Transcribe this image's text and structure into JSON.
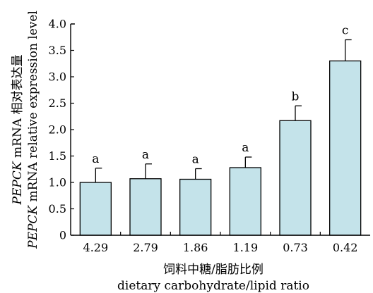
{
  "chart_data": {
    "type": "bar",
    "categories": [
      "4.29",
      "2.79",
      "1.86",
      "1.19",
      "0.73",
      "0.42"
    ],
    "values": [
      1.0,
      1.07,
      1.06,
      1.28,
      2.17,
      3.3
    ],
    "errors": [
      0.27,
      0.28,
      0.2,
      0.2,
      0.28,
      0.4
    ],
    "significance": [
      "a",
      "a",
      "a",
      "a",
      "b",
      "c"
    ],
    "xlabel_cn": "饲料中糖/脂肪比例",
    "xlabel_en": "dietary carbohydrate/lipid ratio",
    "ylabel_cn": {
      "gene": "PEPCK",
      "rest": " mRNA 相对表达量"
    },
    "ylabel_en": {
      "gene": "PEPCK",
      "rest": " mRNA relative expression level"
    },
    "ylim": [
      0,
      4.0
    ],
    "yticks": [
      "0",
      "0.5",
      "1.0",
      "1.5",
      "2.0",
      "2.5",
      "3.0",
      "3.5",
      "4.0"
    ],
    "bar_color": "#c4e3ea",
    "grid": false,
    "legend": "none"
  }
}
